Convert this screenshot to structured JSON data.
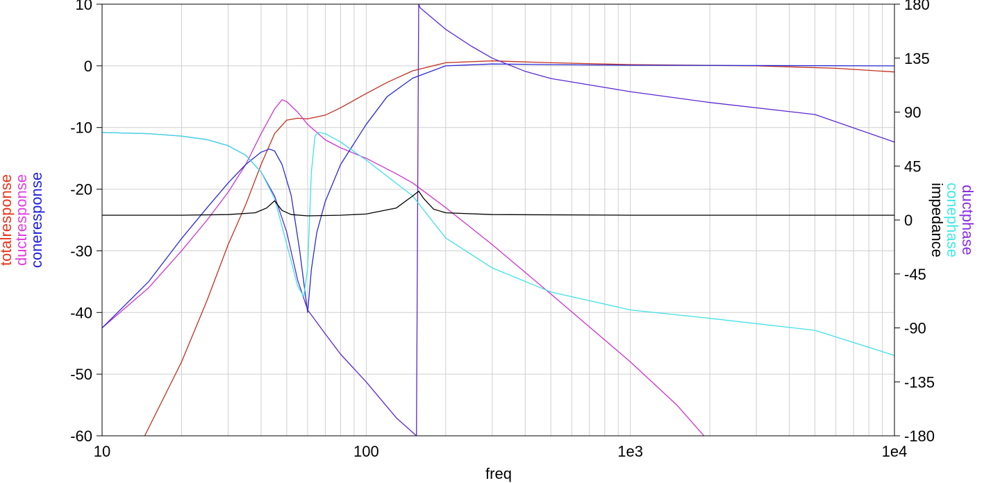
{
  "chart_data": {
    "type": "line",
    "xlabel": "freq",
    "x_scale": "log",
    "xlim": [
      10,
      10000
    ],
    "x_ticks": [
      10,
      100,
      1000,
      10000
    ],
    "x_tick_labels": [
      "10",
      "100",
      "1e3",
      "1e4"
    ],
    "ylim_left": [
      -60,
      10
    ],
    "y_left_ticks": [
      10,
      0,
      -10,
      -20,
      -30,
      -40,
      -50,
      -60
    ],
    "y_left_tick_labels": [
      "10",
      "0",
      "-10",
      "-20",
      "-30",
      "-40",
      "-50",
      "-60"
    ],
    "ylim_right": [
      -180,
      180
    ],
    "y_right_ticks": [
      180,
      135,
      90,
      45,
      0,
      -45,
      -90,
      -135,
      -180
    ],
    "y_right_tick_labels": [
      "180",
      "135",
      "90",
      "45",
      "0",
      "-45",
      "-90",
      "-135",
      "-180"
    ],
    "grid": true,
    "left_axis_labels": [
      {
        "text": "totalresponse",
        "color": "#e8341c"
      },
      {
        "text": "ductresponse",
        "color": "#e040e0"
      },
      {
        "text": "coneresponse",
        "color": "#2020e0"
      }
    ],
    "right_axis_labels": [
      {
        "text": "ductphase",
        "color": "#8a2be2"
      },
      {
        "text": "conephase",
        "color": "#40e8e8"
      },
      {
        "text": "impedance",
        "color": "#000000"
      }
    ],
    "series": [
      {
        "name": "totalresponse",
        "axis": "left",
        "color": "#c0301e",
        "points": [
          [
            14.5,
            -60
          ],
          [
            20,
            -48
          ],
          [
            25,
            -38
          ],
          [
            30,
            -29
          ],
          [
            35,
            -22.5
          ],
          [
            40,
            -16
          ],
          [
            45,
            -11
          ],
          [
            50,
            -8.8
          ],
          [
            55,
            -8.5
          ],
          [
            60,
            -8.6
          ],
          [
            70,
            -8
          ],
          [
            80,
            -6.8
          ],
          [
            100,
            -4.5
          ],
          [
            120,
            -2.7
          ],
          [
            150,
            -0.8
          ],
          [
            200,
            0.5
          ],
          [
            300,
            0.8
          ],
          [
            500,
            0.5
          ],
          [
            1000,
            0.2
          ],
          [
            3000,
            0
          ],
          [
            6000,
            -0.4
          ],
          [
            10000,
            -1
          ]
        ]
      },
      {
        "name": "ductresponse",
        "axis": "left",
        "color": "#cc33cc",
        "points": [
          [
            10,
            -42.5
          ],
          [
            15,
            -36
          ],
          [
            20,
            -30
          ],
          [
            25,
            -25
          ],
          [
            30,
            -20.5
          ],
          [
            35,
            -16
          ],
          [
            40,
            -11
          ],
          [
            45,
            -7
          ],
          [
            48,
            -5.5
          ],
          [
            50,
            -5.8
          ],
          [
            55,
            -7.5
          ],
          [
            60,
            -9.5
          ],
          [
            70,
            -12
          ],
          [
            80,
            -13.3
          ],
          [
            100,
            -15
          ],
          [
            130,
            -17.5
          ],
          [
            150,
            -19
          ],
          [
            200,
            -23
          ],
          [
            300,
            -29
          ],
          [
            500,
            -37
          ],
          [
            1000,
            -48
          ],
          [
            1500,
            -55
          ],
          [
            1900,
            -60
          ]
        ]
      },
      {
        "name": "coneresponse",
        "axis": "left",
        "color": "#2a2ad0",
        "points": [
          [
            10,
            -42.5
          ],
          [
            15,
            -35
          ],
          [
            20,
            -28
          ],
          [
            25,
            -23
          ],
          [
            30,
            -19
          ],
          [
            35,
            -16
          ],
          [
            40,
            -14
          ],
          [
            43,
            -13.5
          ],
          [
            45,
            -13.8
          ],
          [
            48,
            -16
          ],
          [
            52,
            -21
          ],
          [
            56,
            -30
          ],
          [
            60,
            -40
          ],
          [
            62,
            -33
          ],
          [
            65,
            -27
          ],
          [
            70,
            -22
          ],
          [
            80,
            -16
          ],
          [
            100,
            -9.5
          ],
          [
            120,
            -5
          ],
          [
            150,
            -2
          ],
          [
            200,
            0
          ],
          [
            300,
            0.3
          ],
          [
            500,
            0.2
          ],
          [
            1000,
            0.1
          ],
          [
            10000,
            0
          ]
        ]
      },
      {
        "name": "ductphase",
        "axis": "right",
        "color": "#5a28d0",
        "points": [
          [
            10,
            73
          ],
          [
            15,
            72
          ],
          [
            20,
            70
          ],
          [
            25,
            67
          ],
          [
            30,
            62
          ],
          [
            35,
            54
          ],
          [
            40,
            40
          ],
          [
            45,
            20
          ],
          [
            50,
            -10
          ],
          [
            55,
            -50
          ],
          [
            60,
            -75
          ],
          [
            70,
            -95
          ],
          [
            80,
            -112
          ],
          [
            100,
            -135
          ],
          [
            130,
            -165
          ],
          [
            155,
            -180
          ],
          [
            158,
            180
          ],
          [
            160,
            177
          ],
          [
            200,
            159
          ],
          [
            250,
            145
          ],
          [
            300,
            135
          ],
          [
            400,
            124
          ],
          [
            500,
            118
          ],
          [
            1000,
            107
          ],
          [
            2000,
            98
          ],
          [
            5000,
            88
          ],
          [
            10000,
            65
          ]
        ]
      },
      {
        "name": "conephase",
        "axis": "right",
        "color": "#3fe0e8",
        "points": [
          [
            10,
            73
          ],
          [
            15,
            72
          ],
          [
            20,
            70
          ],
          [
            25,
            67
          ],
          [
            30,
            62
          ],
          [
            35,
            54
          ],
          [
            40,
            40
          ],
          [
            45,
            18
          ],
          [
            50,
            -20
          ],
          [
            55,
            -55
          ],
          [
            58,
            -64
          ],
          [
            60,
            -40
          ],
          [
            62,
            40
          ],
          [
            64,
            70
          ],
          [
            66,
            73
          ],
          [
            70,
            72
          ],
          [
            80,
            65
          ],
          [
            100,
            50
          ],
          [
            150,
            20
          ],
          [
            200,
            -15
          ],
          [
            300,
            -40
          ],
          [
            500,
            -60
          ],
          [
            1000,
            -75
          ],
          [
            2000,
            -82
          ],
          [
            5000,
            -92
          ],
          [
            10000,
            -113
          ]
        ]
      },
      {
        "name": "impedance",
        "axis": "right",
        "color": "#000000",
        "points": [
          [
            10,
            4
          ],
          [
            20,
            4
          ],
          [
            30,
            4.5
          ],
          [
            38,
            6
          ],
          [
            42,
            10
          ],
          [
            45,
            16
          ],
          [
            48,
            8
          ],
          [
            52,
            4.5
          ],
          [
            60,
            3.5
          ],
          [
            80,
            4
          ],
          [
            100,
            5
          ],
          [
            130,
            10
          ],
          [
            150,
            20
          ],
          [
            158,
            24
          ],
          [
            165,
            18
          ],
          [
            180,
            9
          ],
          [
            200,
            6
          ],
          [
            300,
            4.5
          ],
          [
            1000,
            4
          ],
          [
            10000,
            4
          ]
        ]
      }
    ]
  }
}
